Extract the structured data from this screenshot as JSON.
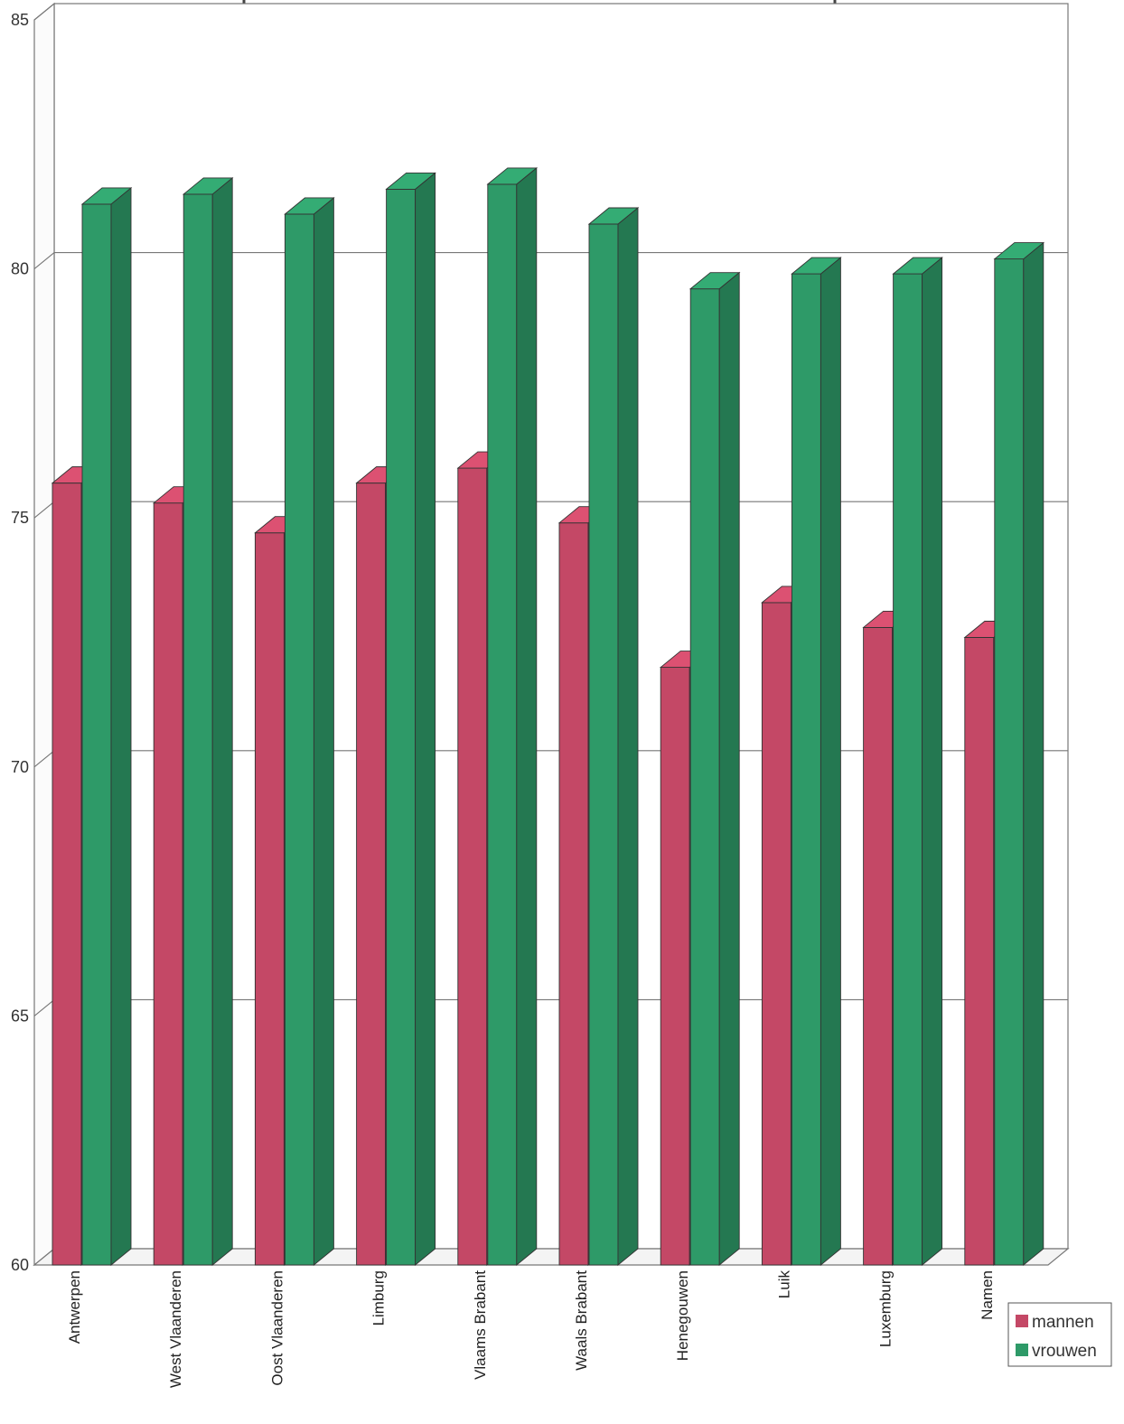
{
  "chart_data": {
    "type": "bar",
    "categories": [
      "Antwerpen",
      "West Vlaanderen",
      "Oost Vlaanderen",
      "Limburg",
      "Vlaams Brabant",
      "Waals Brabant",
      "Henegouwen",
      "Luik",
      "Luxemburg",
      "Namen"
    ],
    "series": [
      {
        "name": "mannen",
        "values": [
          75.7,
          75.3,
          74.7,
          75.7,
          76.0,
          74.9,
          72.0,
          73.3,
          72.8,
          72.6
        ],
        "color": "#c44866"
      },
      {
        "name": "vrouwen",
        "values": [
          81.3,
          81.5,
          81.1,
          81.6,
          81.7,
          80.9,
          79.6,
          79.9,
          79.9,
          80.2
        ],
        "color": "#2e9a68"
      }
    ],
    "yticks": [
      "60",
      "65",
      "70",
      "75",
      "80",
      "85"
    ],
    "ylim": [
      60,
      85
    ],
    "grid": true,
    "legend_position": "bottom-right",
    "title": "",
    "xlabel": "",
    "ylabel": ""
  }
}
